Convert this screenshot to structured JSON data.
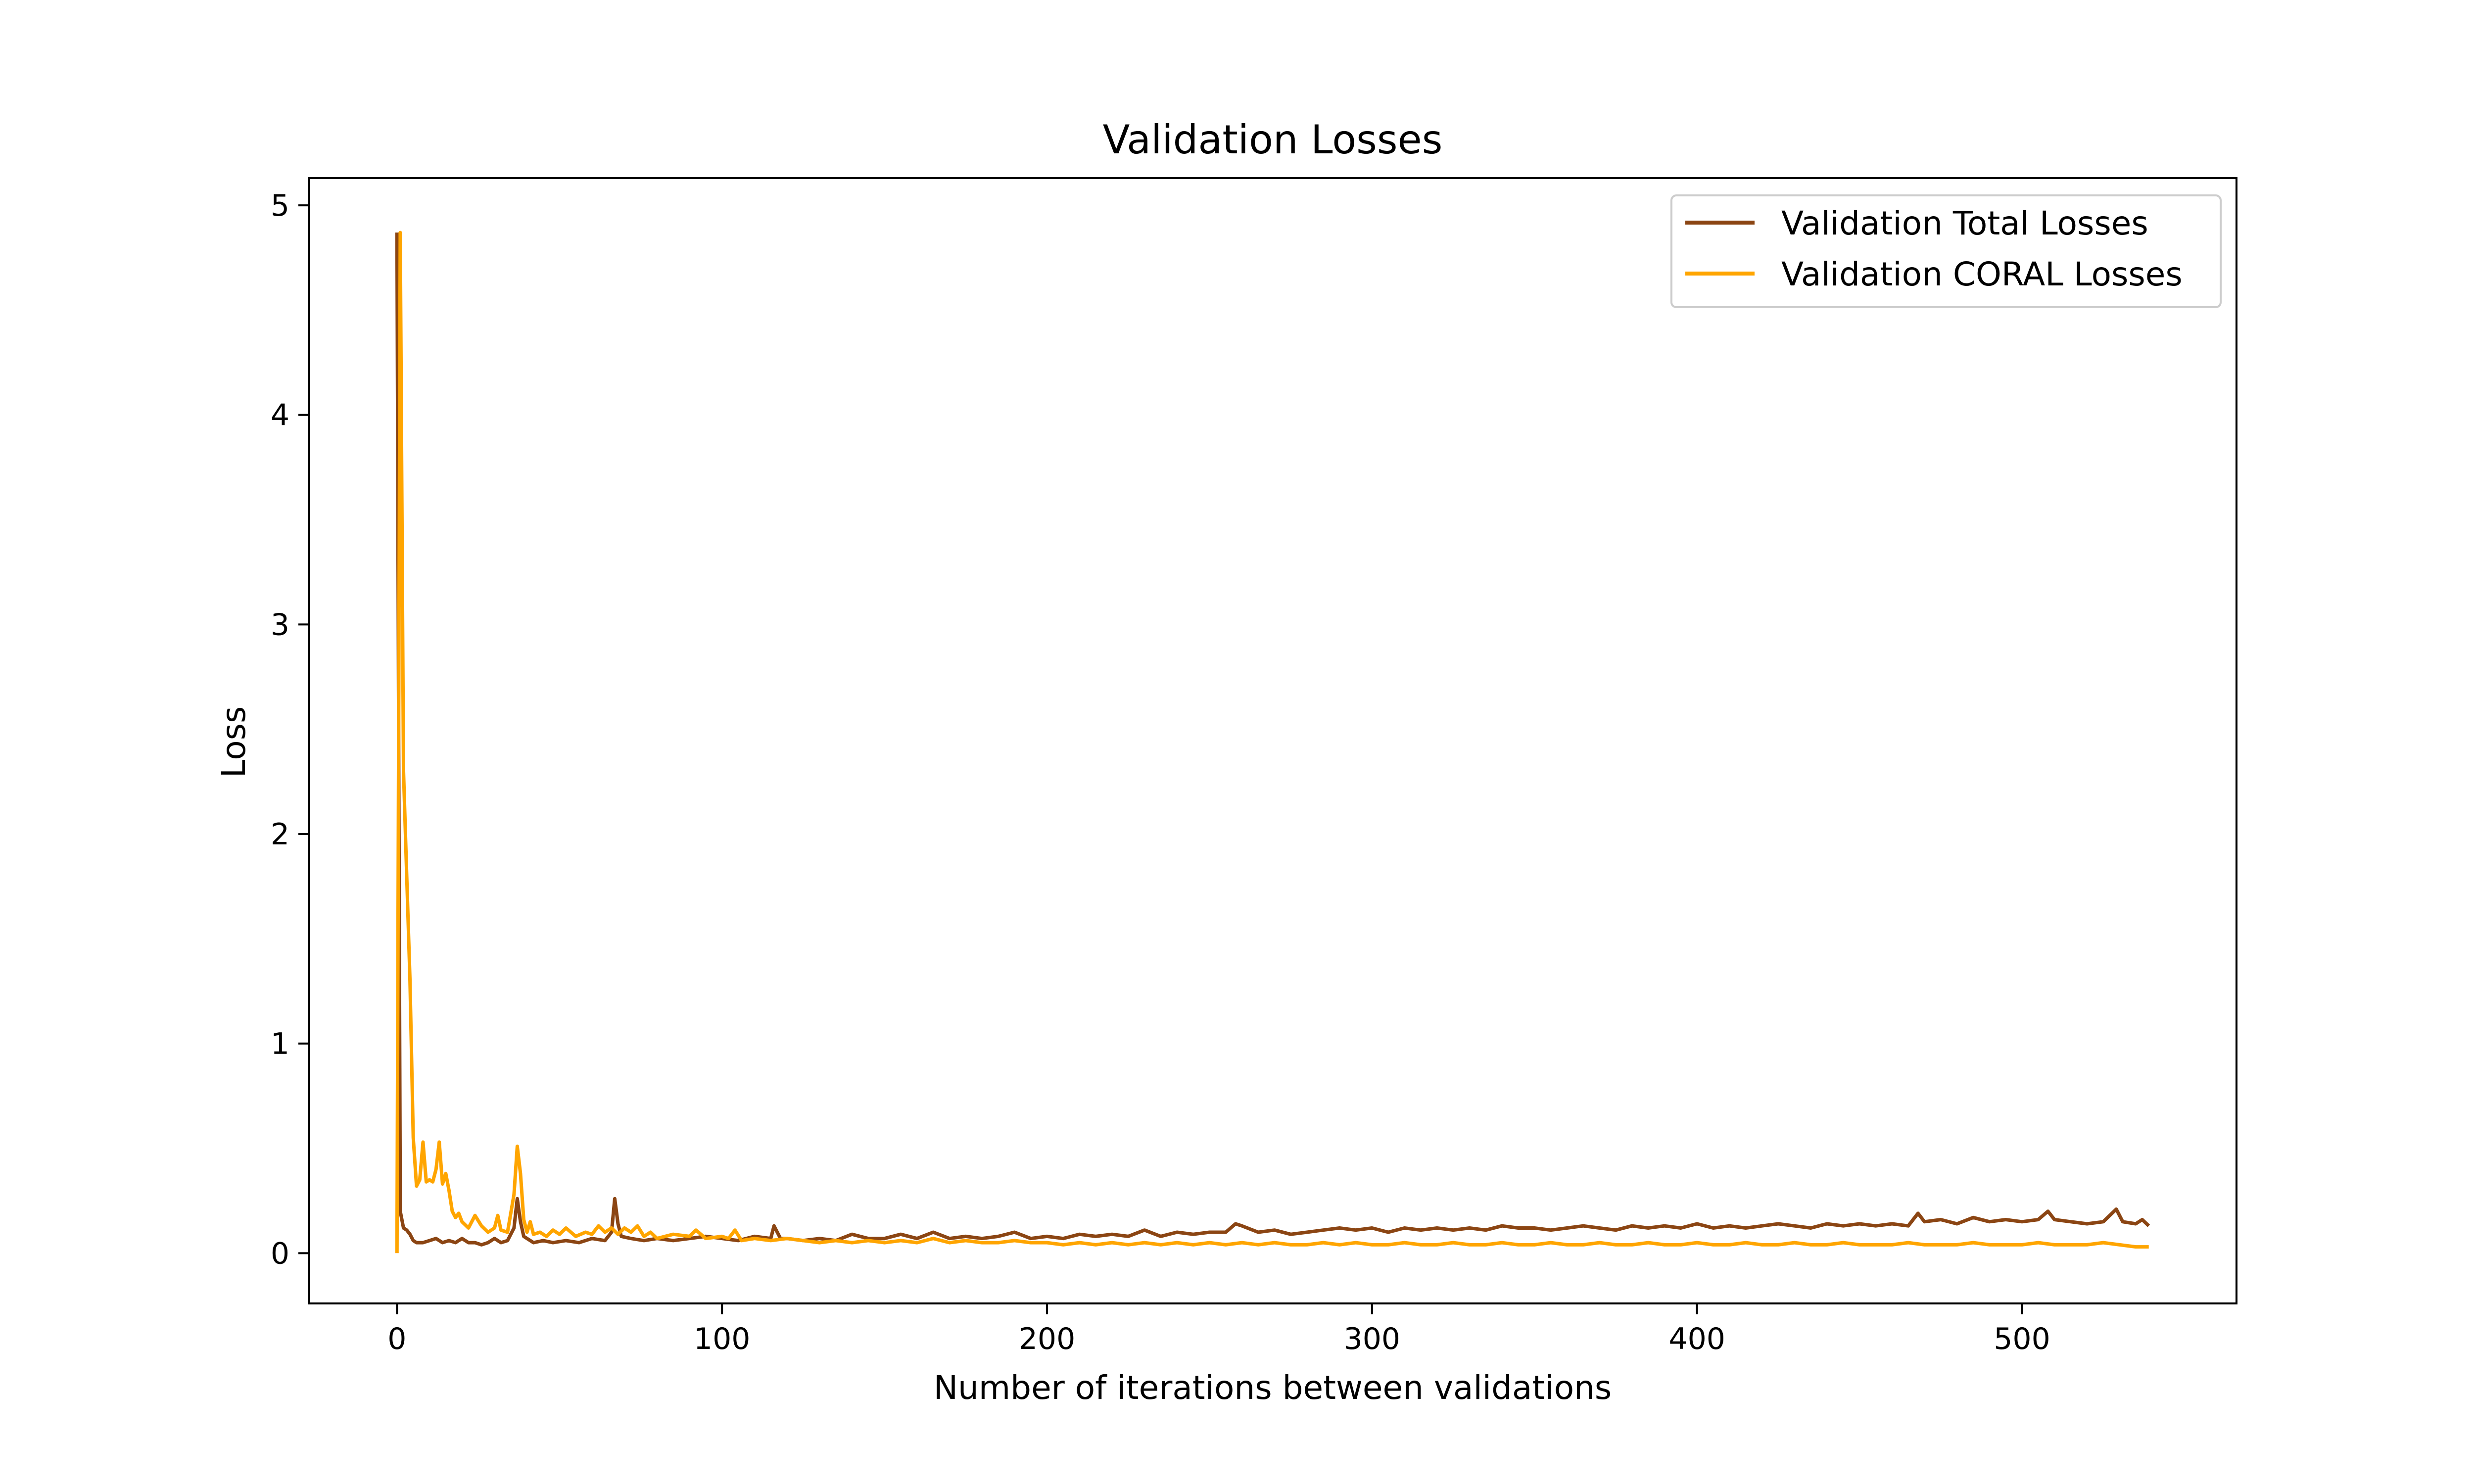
{
  "chart_data": {
    "type": "line",
    "title": "Validation Losses",
    "xlabel": "Number of iterations between validations",
    "ylabel": "Loss",
    "xlim": [
      -27,
      566
    ],
    "ylim": [
      -0.24,
      5.13
    ],
    "x_ticks": [
      0,
      100,
      200,
      300,
      400,
      500
    ],
    "y_ticks": [
      0,
      1,
      2,
      3,
      4,
      5
    ],
    "grid": false,
    "legend_position": "top-right",
    "x_range": [
      0,
      539
    ],
    "series": [
      {
        "name": "Validation Total Losses",
        "color": "#8B4513",
        "points": [
          [
            0,
            4.87
          ],
          [
            1,
            0.2
          ],
          [
            2,
            0.12
          ],
          [
            3,
            0.11
          ],
          [
            4,
            0.09
          ],
          [
            5,
            0.06
          ],
          [
            6,
            0.05
          ],
          [
            8,
            0.05
          ],
          [
            10,
            0.06
          ],
          [
            12,
            0.07
          ],
          [
            14,
            0.05
          ],
          [
            16,
            0.06
          ],
          [
            18,
            0.05
          ],
          [
            20,
            0.07
          ],
          [
            22,
            0.05
          ],
          [
            24,
            0.05
          ],
          [
            26,
            0.04
          ],
          [
            28,
            0.05
          ],
          [
            30,
            0.07
          ],
          [
            32,
            0.05
          ],
          [
            34,
            0.06
          ],
          [
            36,
            0.12
          ],
          [
            37,
            0.26
          ],
          [
            38,
            0.15
          ],
          [
            39,
            0.08
          ],
          [
            40,
            0.07
          ],
          [
            42,
            0.05
          ],
          [
            45,
            0.06
          ],
          [
            48,
            0.05
          ],
          [
            52,
            0.06
          ],
          [
            56,
            0.05
          ],
          [
            60,
            0.07
          ],
          [
            64,
            0.06
          ],
          [
            66,
            0.1
          ],
          [
            67,
            0.26
          ],
          [
            68,
            0.14
          ],
          [
            69,
            0.08
          ],
          [
            72,
            0.07
          ],
          [
            76,
            0.06
          ],
          [
            80,
            0.07
          ],
          [
            85,
            0.06
          ],
          [
            90,
            0.07
          ],
          [
            95,
            0.08
          ],
          [
            100,
            0.07
          ],
          [
            105,
            0.06
          ],
          [
            110,
            0.08
          ],
          [
            115,
            0.07
          ],
          [
            116,
            0.13
          ],
          [
            118,
            0.07
          ],
          [
            120,
            0.07
          ],
          [
            125,
            0.06
          ],
          [
            130,
            0.07
          ],
          [
            135,
            0.06
          ],
          [
            140,
            0.09
          ],
          [
            145,
            0.07
          ],
          [
            150,
            0.07
          ],
          [
            155,
            0.09
          ],
          [
            160,
            0.07
          ],
          [
            165,
            0.1
          ],
          [
            170,
            0.07
          ],
          [
            175,
            0.08
          ],
          [
            180,
            0.07
          ],
          [
            185,
            0.08
          ],
          [
            190,
            0.1
          ],
          [
            195,
            0.07
          ],
          [
            200,
            0.08
          ],
          [
            205,
            0.07
          ],
          [
            210,
            0.09
          ],
          [
            215,
            0.08
          ],
          [
            220,
            0.09
          ],
          [
            225,
            0.08
          ],
          [
            230,
            0.11
          ],
          [
            235,
            0.08
          ],
          [
            240,
            0.1
          ],
          [
            245,
            0.09
          ],
          [
            250,
            0.1
          ],
          [
            255,
            0.1
          ],
          [
            258,
            0.14
          ],
          [
            260,
            0.13
          ],
          [
            265,
            0.1
          ],
          [
            270,
            0.11
          ],
          [
            275,
            0.09
          ],
          [
            280,
            0.1
          ],
          [
            285,
            0.11
          ],
          [
            290,
            0.12
          ],
          [
            295,
            0.11
          ],
          [
            300,
            0.12
          ],
          [
            305,
            0.1
          ],
          [
            310,
            0.12
          ],
          [
            315,
            0.11
          ],
          [
            320,
            0.12
          ],
          [
            325,
            0.11
          ],
          [
            330,
            0.12
          ],
          [
            335,
            0.11
          ],
          [
            340,
            0.13
          ],
          [
            345,
            0.12
          ],
          [
            350,
            0.12
          ],
          [
            355,
            0.11
          ],
          [
            360,
            0.12
          ],
          [
            365,
            0.13
          ],
          [
            370,
            0.12
          ],
          [
            375,
            0.11
          ],
          [
            380,
            0.13
          ],
          [
            385,
            0.12
          ],
          [
            390,
            0.13
          ],
          [
            395,
            0.12
          ],
          [
            400,
            0.14
          ],
          [
            405,
            0.12
          ],
          [
            410,
            0.13
          ],
          [
            415,
            0.12
          ],
          [
            420,
            0.13
          ],
          [
            425,
            0.14
          ],
          [
            430,
            0.13
          ],
          [
            435,
            0.12
          ],
          [
            440,
            0.14
          ],
          [
            445,
            0.13
          ],
          [
            450,
            0.14
          ],
          [
            455,
            0.13
          ],
          [
            460,
            0.14
          ],
          [
            465,
            0.13
          ],
          [
            468,
            0.19
          ],
          [
            470,
            0.15
          ],
          [
            475,
            0.16
          ],
          [
            480,
            0.14
          ],
          [
            485,
            0.17
          ],
          [
            490,
            0.15
          ],
          [
            495,
            0.16
          ],
          [
            500,
            0.15
          ],
          [
            505,
            0.16
          ],
          [
            508,
            0.2
          ],
          [
            510,
            0.16
          ],
          [
            515,
            0.15
          ],
          [
            520,
            0.14
          ],
          [
            525,
            0.15
          ],
          [
            529,
            0.21
          ],
          [
            531,
            0.15
          ],
          [
            535,
            0.14
          ],
          [
            537,
            0.16
          ],
          [
            539,
            0.13
          ]
        ]
      },
      {
        "name": "Validation CORAL Losses",
        "color": "#FFA500",
        "points": [
          [
            0,
            0.0
          ],
          [
            1,
            4.87
          ],
          [
            2,
            2.3
          ],
          [
            3,
            1.8
          ],
          [
            4,
            1.3
          ],
          [
            5,
            0.55
          ],
          [
            6,
            0.32
          ],
          [
            7,
            0.35
          ],
          [
            8,
            0.53
          ],
          [
            9,
            0.34
          ],
          [
            10,
            0.35
          ],
          [
            11,
            0.34
          ],
          [
            12,
            0.4
          ],
          [
            13,
            0.53
          ],
          [
            14,
            0.33
          ],
          [
            15,
            0.38
          ],
          [
            16,
            0.3
          ],
          [
            17,
            0.2
          ],
          [
            18,
            0.17
          ],
          [
            19,
            0.19
          ],
          [
            20,
            0.15
          ],
          [
            22,
            0.12
          ],
          [
            24,
            0.18
          ],
          [
            26,
            0.13
          ],
          [
            28,
            0.1
          ],
          [
            30,
            0.12
          ],
          [
            31,
            0.18
          ],
          [
            32,
            0.11
          ],
          [
            34,
            0.1
          ],
          [
            36,
            0.28
          ],
          [
            37,
            0.51
          ],
          [
            38,
            0.38
          ],
          [
            39,
            0.16
          ],
          [
            40,
            0.1
          ],
          [
            41,
            0.15
          ],
          [
            42,
            0.09
          ],
          [
            44,
            0.1
          ],
          [
            46,
            0.08
          ],
          [
            48,
            0.11
          ],
          [
            50,
            0.09
          ],
          [
            52,
            0.12
          ],
          [
            55,
            0.08
          ],
          [
            58,
            0.1
          ],
          [
            60,
            0.09
          ],
          [
            62,
            0.13
          ],
          [
            64,
            0.1
          ],
          [
            66,
            0.12
          ],
          [
            68,
            0.09
          ],
          [
            70,
            0.12
          ],
          [
            72,
            0.1
          ],
          [
            74,
            0.13
          ],
          [
            76,
            0.08
          ],
          [
            78,
            0.1
          ],
          [
            80,
            0.07
          ],
          [
            85,
            0.09
          ],
          [
            90,
            0.08
          ],
          [
            92,
            0.11
          ],
          [
            95,
            0.07
          ],
          [
            100,
            0.08
          ],
          [
            102,
            0.07
          ],
          [
            104,
            0.11
          ],
          [
            106,
            0.06
          ],
          [
            110,
            0.07
          ],
          [
            115,
            0.06
          ],
          [
            120,
            0.07
          ],
          [
            125,
            0.06
          ],
          [
            130,
            0.05
          ],
          [
            135,
            0.06
          ],
          [
            140,
            0.05
          ],
          [
            145,
            0.06
          ],
          [
            150,
            0.05
          ],
          [
            155,
            0.06
          ],
          [
            160,
            0.05
          ],
          [
            165,
            0.07
          ],
          [
            170,
            0.05
          ],
          [
            175,
            0.06
          ],
          [
            180,
            0.05
          ],
          [
            185,
            0.05
          ],
          [
            190,
            0.06
          ],
          [
            195,
            0.05
          ],
          [
            200,
            0.05
          ],
          [
            205,
            0.04
          ],
          [
            210,
            0.05
          ],
          [
            215,
            0.04
          ],
          [
            220,
            0.05
          ],
          [
            225,
            0.04
          ],
          [
            230,
            0.05
          ],
          [
            235,
            0.04
          ],
          [
            240,
            0.05
          ],
          [
            245,
            0.04
          ],
          [
            250,
            0.05
          ],
          [
            255,
            0.04
          ],
          [
            260,
            0.05
          ],
          [
            265,
            0.04
          ],
          [
            270,
            0.05
          ],
          [
            275,
            0.04
          ],
          [
            280,
            0.04
          ],
          [
            285,
            0.05
          ],
          [
            290,
            0.04
          ],
          [
            295,
            0.05
          ],
          [
            300,
            0.04
          ],
          [
            305,
            0.04
          ],
          [
            310,
            0.05
          ],
          [
            315,
            0.04
          ],
          [
            320,
            0.04
          ],
          [
            325,
            0.05
          ],
          [
            330,
            0.04
          ],
          [
            335,
            0.04
          ],
          [
            340,
            0.05
          ],
          [
            345,
            0.04
          ],
          [
            350,
            0.04
          ],
          [
            355,
            0.05
          ],
          [
            360,
            0.04
          ],
          [
            365,
            0.04
          ],
          [
            370,
            0.05
          ],
          [
            375,
            0.04
          ],
          [
            380,
            0.04
          ],
          [
            385,
            0.05
          ],
          [
            390,
            0.04
          ],
          [
            395,
            0.04
          ],
          [
            400,
            0.05
          ],
          [
            405,
            0.04
          ],
          [
            410,
            0.04
          ],
          [
            415,
            0.05
          ],
          [
            420,
            0.04
          ],
          [
            425,
            0.04
          ],
          [
            430,
            0.05
          ],
          [
            435,
            0.04
          ],
          [
            440,
            0.04
          ],
          [
            445,
            0.05
          ],
          [
            450,
            0.04
          ],
          [
            455,
            0.04
          ],
          [
            460,
            0.04
          ],
          [
            465,
            0.05
          ],
          [
            470,
            0.04
          ],
          [
            475,
            0.04
          ],
          [
            480,
            0.04
          ],
          [
            485,
            0.05
          ],
          [
            490,
            0.04
          ],
          [
            495,
            0.04
          ],
          [
            500,
            0.04
          ],
          [
            505,
            0.05
          ],
          [
            510,
            0.04
          ],
          [
            515,
            0.04
          ],
          [
            520,
            0.04
          ],
          [
            525,
            0.05
          ],
          [
            530,
            0.04
          ],
          [
            535,
            0.03
          ],
          [
            539,
            0.03
          ]
        ]
      }
    ]
  }
}
